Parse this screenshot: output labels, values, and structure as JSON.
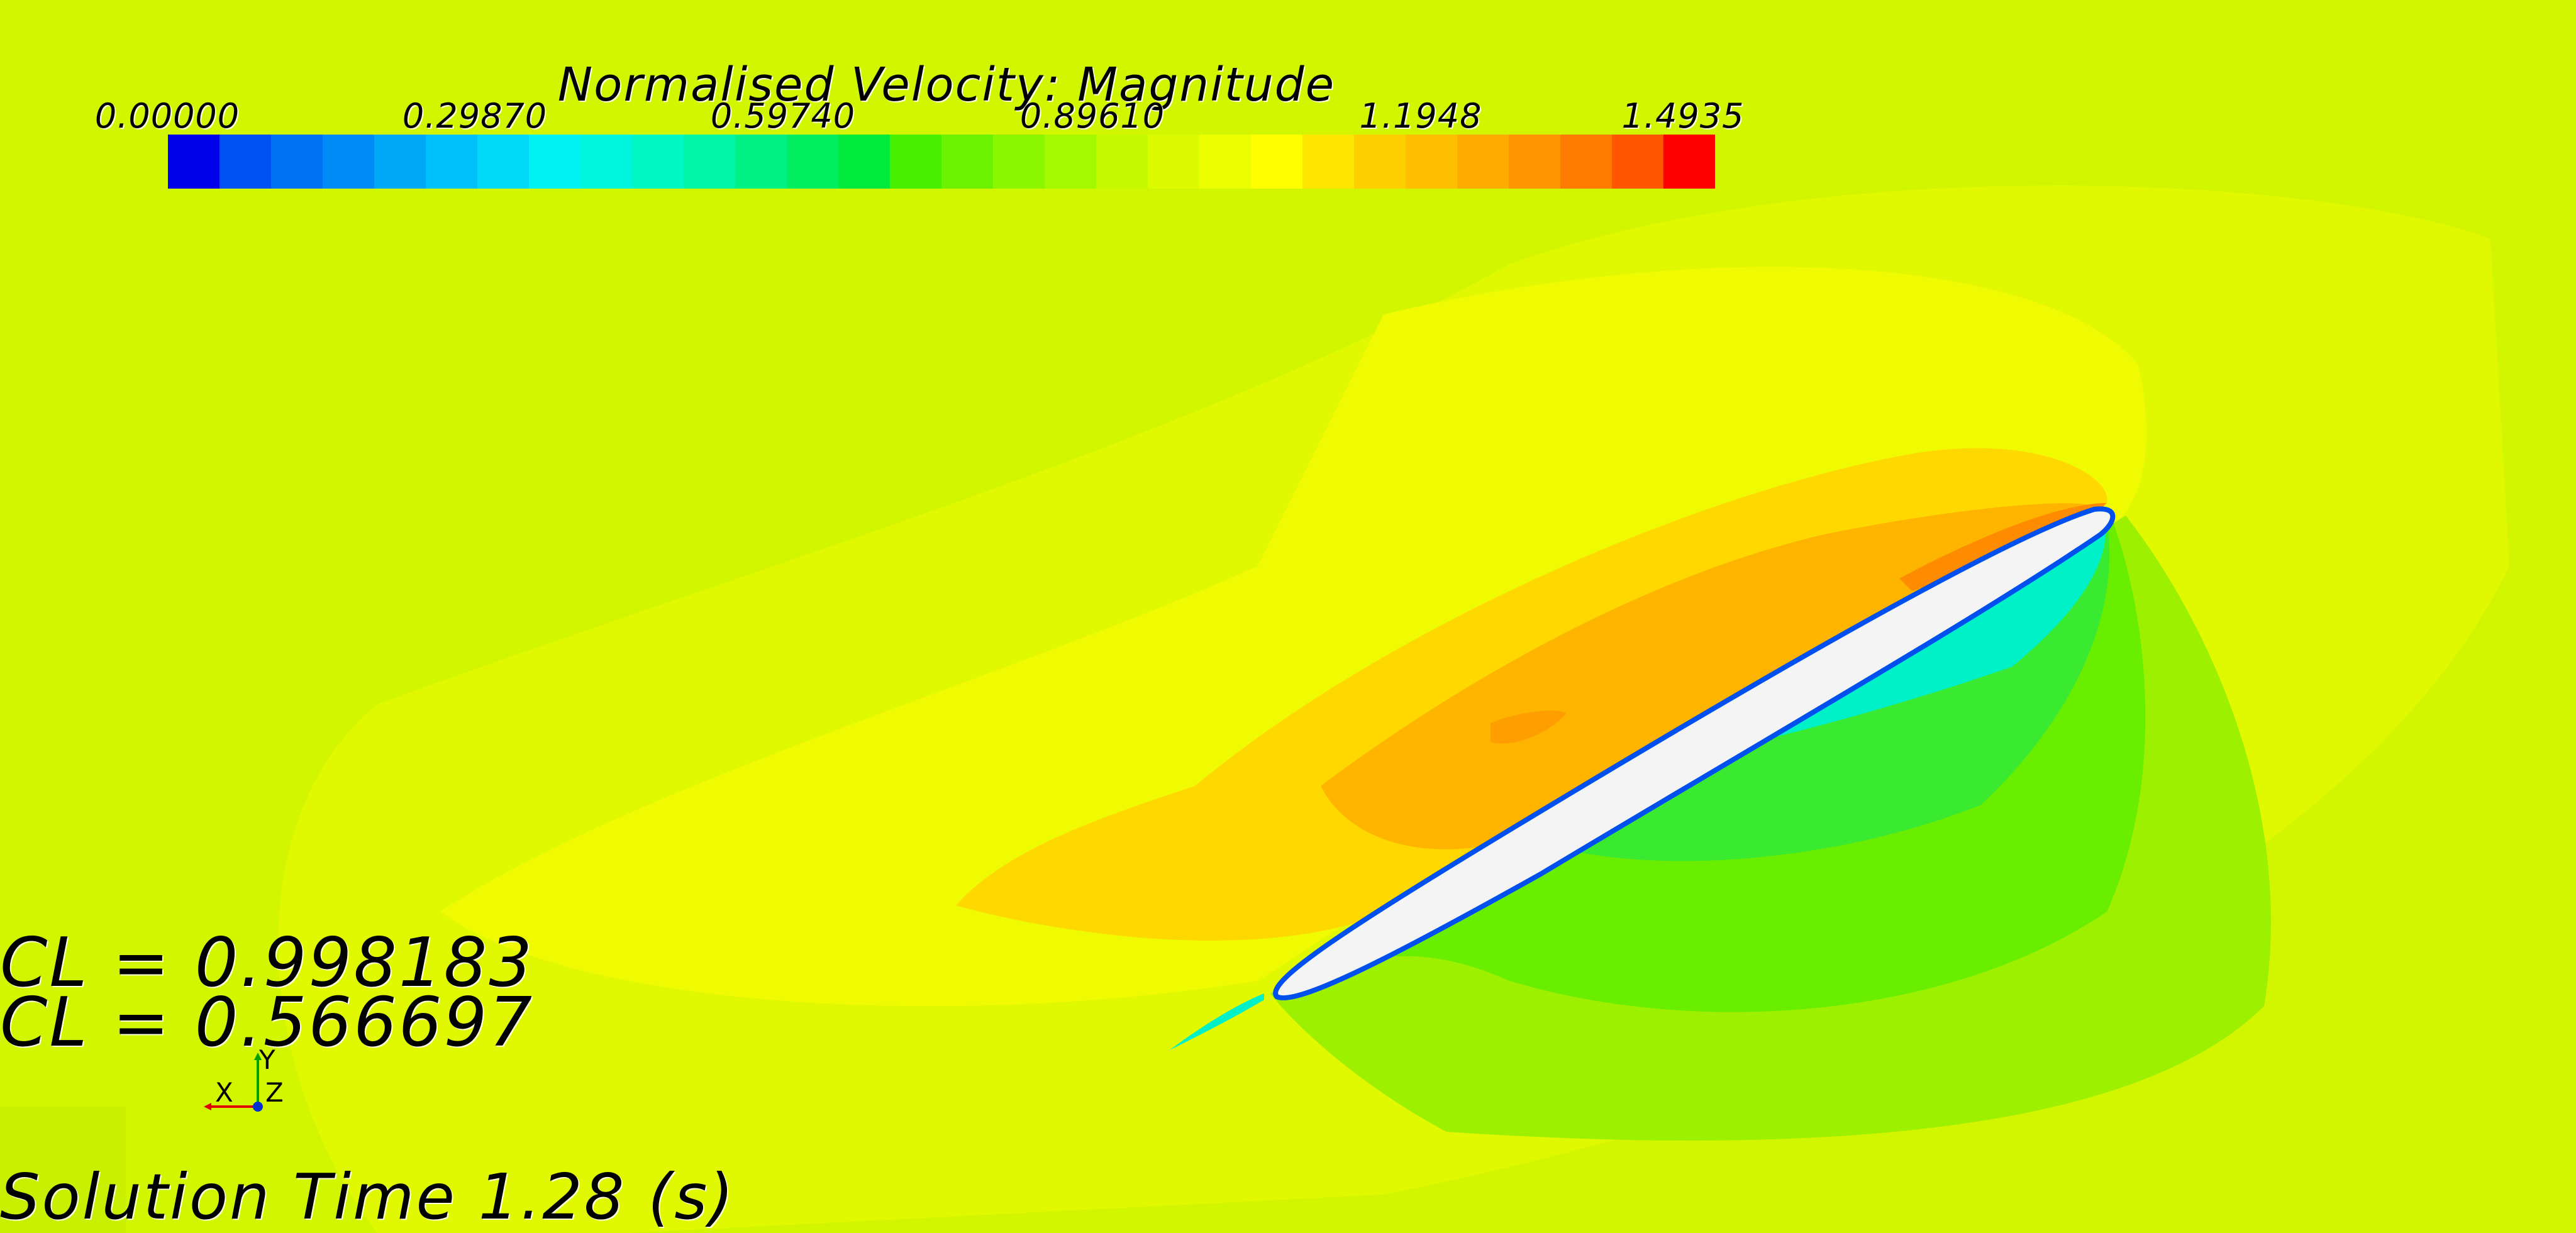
{
  "legend": {
    "title": "Normalised Velocity: Magnitude",
    "ticks": [
      "0.00000",
      "0.29870",
      "0.59740",
      "0.89610",
      "1.1948",
      "1.4935"
    ],
    "colors": [
      "#0000e8",
      "#0052f0",
      "#0072f3",
      "#008cf6",
      "#00a8f8",
      "#00c2fa",
      "#00daf8",
      "#00f2f2",
      "#00f6dc",
      "#00f6c2",
      "#00f6a4",
      "#00f285",
      "#00ee60",
      "#00ea3c",
      "#48f000",
      "#6cf200",
      "#8cf500",
      "#a6f800",
      "#c6f900",
      "#dcfb00",
      "#ecff00",
      "#ffff00",
      "#ffe600",
      "#ffd000",
      "#ffbe00",
      "#ffac00",
      "#ff9500",
      "#ff7a00",
      "#ff5600",
      "#ff0000"
    ]
  },
  "coefficients": [
    "CL = 0.998183",
    "CL = 0.566697"
  ],
  "axes": {
    "x": "X",
    "y": "Y",
    "z": "Z"
  },
  "solution_time": "Solution Time 1.28 (s)",
  "field_colors": {
    "background": "#d2f500",
    "yellow": "#f0fa00",
    "amber": "#ffd800",
    "orange": "#ffb500",
    "deep_orange": "#ff8c00",
    "green_light": "#9cf000",
    "green": "#6aee00",
    "green_deep": "#3aea30",
    "cyan": "#00f0c8",
    "airfoil": "#f4f4f4"
  }
}
